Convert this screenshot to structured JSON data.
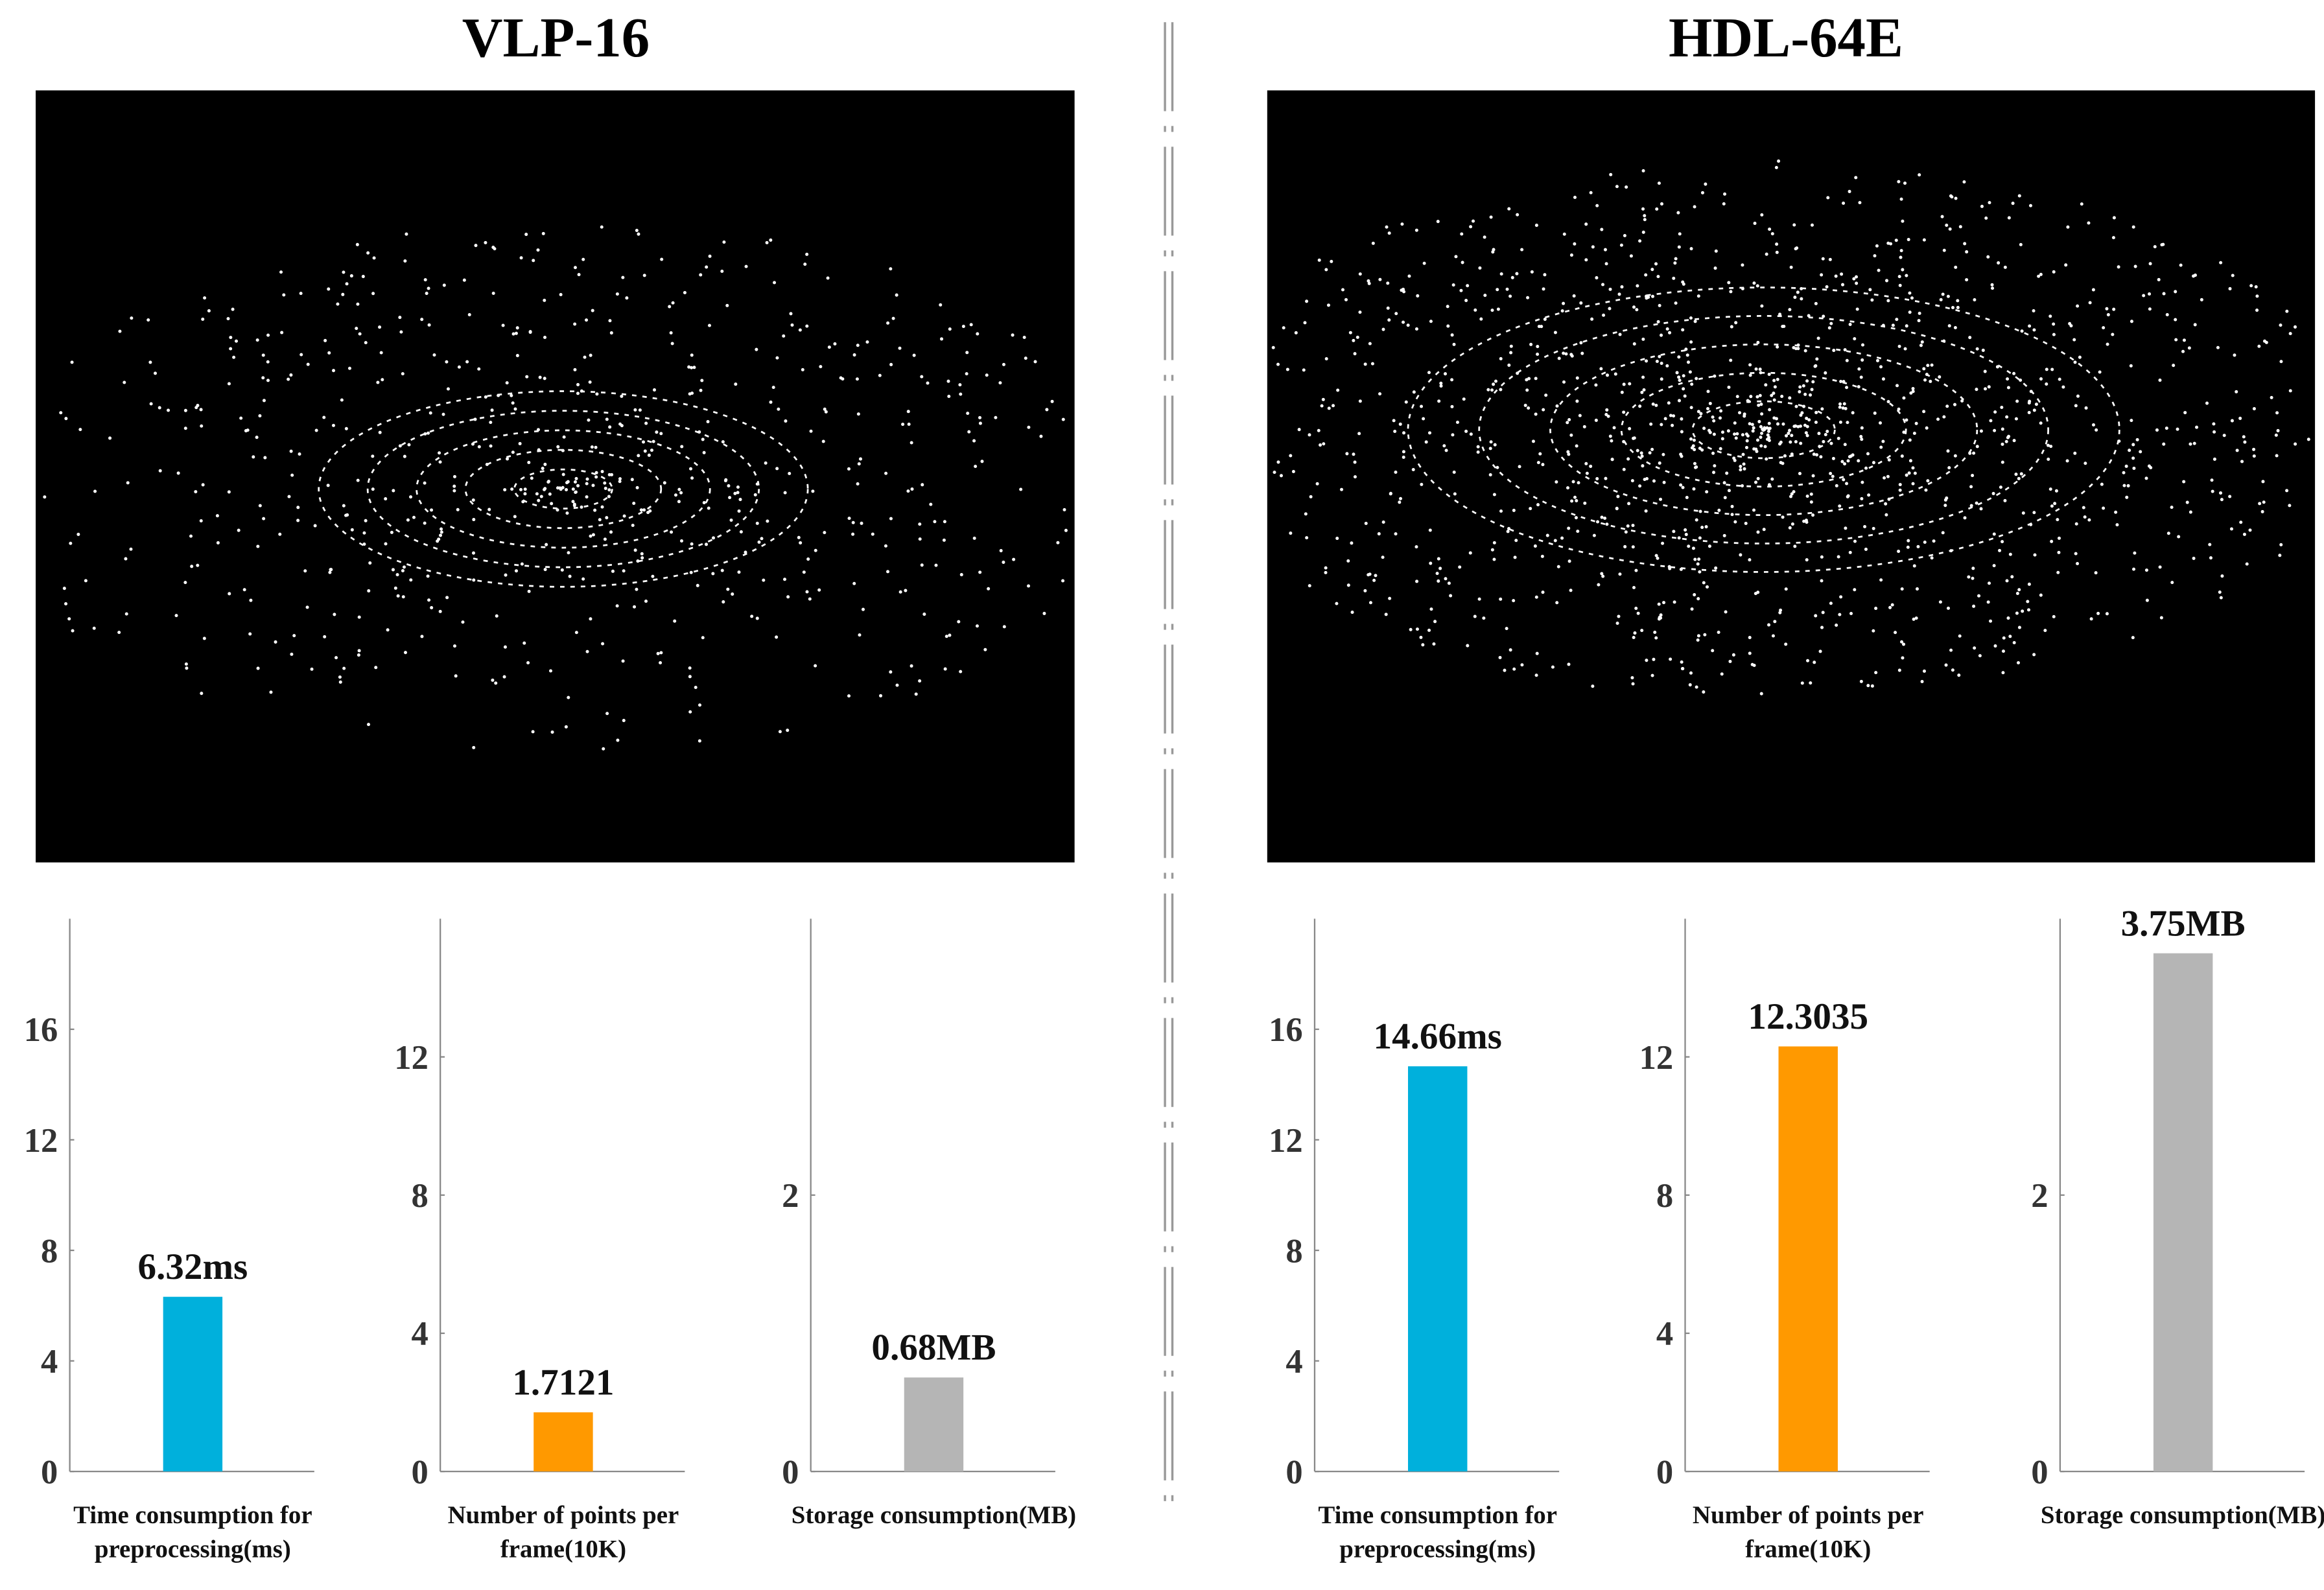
{
  "panels": [
    {
      "title": "VLP-16"
    },
    {
      "title": "HDL-64E"
    }
  ],
  "chart_data": [
    {
      "type": "bar",
      "categories": [
        "Time consumption for preprocessing(ms)"
      ],
      "values": [
        6.32
      ],
      "value_labels": [
        "6.32ms"
      ],
      "color": "#00b0dc",
      "ylim": [
        0,
        20
      ],
      "yticks": [
        0,
        4,
        8,
        12,
        16
      ]
    },
    {
      "type": "bar",
      "categories": [
        "Number of points per frame(10K)"
      ],
      "values": [
        1.7121
      ],
      "value_labels": [
        "1.7121"
      ],
      "color": "#ff9900",
      "ylim": [
        0,
        16
      ],
      "yticks": [
        0,
        4,
        8,
        12
      ]
    },
    {
      "type": "bar",
      "categories": [
        "Storage consumption(MB)"
      ],
      "values": [
        0.68
      ],
      "value_labels": [
        "0.68MB"
      ],
      "color": "#b5b5b5",
      "ylim": [
        0,
        4
      ],
      "yticks": [
        0,
        2
      ]
    },
    {
      "type": "bar",
      "categories": [
        "Time consumption for preprocessing(ms)"
      ],
      "values": [
        14.66
      ],
      "value_labels": [
        "14.66ms"
      ],
      "color": "#00b0dc",
      "ylim": [
        0,
        20
      ],
      "yticks": [
        0,
        4,
        8,
        12,
        16
      ]
    },
    {
      "type": "bar",
      "categories": [
        "Number of points per frame(10K)"
      ],
      "values": [
        12.3035
      ],
      "value_labels": [
        "12.3035"
      ],
      "color": "#ff9900",
      "ylim": [
        0,
        16
      ],
      "yticks": [
        0,
        4,
        8,
        12
      ]
    },
    {
      "type": "bar",
      "categories": [
        "Storage consumption(MB)"
      ],
      "values": [
        3.75
      ],
      "value_labels": [
        "3.75MB"
      ],
      "color": "#b5b5b5",
      "ylim": [
        0,
        4
      ],
      "yticks": [
        0,
        2
      ]
    }
  ]
}
